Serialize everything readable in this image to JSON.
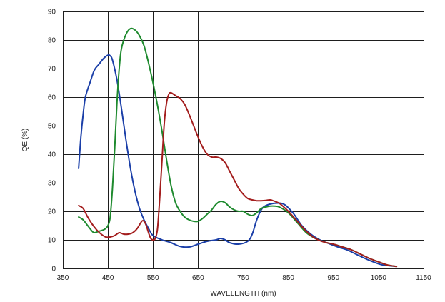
{
  "chart_data": {
    "type": "line",
    "title": "",
    "xlabel": "WAVELENGTH (nm)",
    "ylabel": "QE (%)",
    "xlim": [
      350,
      1150
    ],
    "ylim": [
      0,
      90
    ],
    "xticks": [
      350,
      450,
      550,
      650,
      750,
      850,
      950,
      1050,
      1150
    ],
    "yticks": [
      0,
      10,
      20,
      30,
      40,
      50,
      60,
      70,
      80,
      90
    ],
    "grid": true,
    "legend": "none",
    "series": [
      {
        "color": "#1b3fa8",
        "points": [
          [
            385,
            35
          ],
          [
            390,
            46
          ],
          [
            395,
            54
          ],
          [
            400,
            60
          ],
          [
            410,
            65
          ],
          [
            420,
            69.5
          ],
          [
            430,
            71.5
          ],
          [
            440,
            73.5
          ],
          [
            450,
            74.7
          ],
          [
            455,
            74.5
          ],
          [
            460,
            73
          ],
          [
            470,
            66
          ],
          [
            480,
            56
          ],
          [
            490,
            45
          ],
          [
            500,
            35
          ],
          [
            510,
            27
          ],
          [
            520,
            21
          ],
          [
            530,
            17
          ],
          [
            540,
            14
          ],
          [
            550,
            11.5
          ],
          [
            570,
            10
          ],
          [
            590,
            9
          ],
          [
            610,
            7.7
          ],
          [
            630,
            7.5
          ],
          [
            650,
            8.5
          ],
          [
            670,
            9.5
          ],
          [
            690,
            10
          ],
          [
            700,
            10.5
          ],
          [
            710,
            10
          ],
          [
            720,
            9
          ],
          [
            740,
            8.5
          ],
          [
            760,
            9.5
          ],
          [
            770,
            12
          ],
          [
            780,
            17
          ],
          [
            790,
            20.5
          ],
          [
            800,
            22
          ],
          [
            820,
            22.8
          ],
          [
            840,
            22.5
          ],
          [
            860,
            19.5
          ],
          [
            880,
            15
          ],
          [
            900,
            12
          ],
          [
            920,
            10
          ],
          [
            940,
            8.7
          ],
          [
            960,
            7.5
          ],
          [
            980,
            6.5
          ],
          [
            1000,
            5
          ],
          [
            1020,
            3.5
          ],
          [
            1040,
            2.2
          ],
          [
            1060,
            1.2
          ],
          [
            1090,
            0.7
          ]
        ]
      },
      {
        "color": "#1e8a2e",
        "points": [
          [
            385,
            18
          ],
          [
            395,
            17
          ],
          [
            405,
            15
          ],
          [
            415,
            13
          ],
          [
            420,
            12.5
          ],
          [
            430,
            13
          ],
          [
            440,
            13.5
          ],
          [
            445,
            14
          ],
          [
            450,
            15
          ],
          [
            455,
            18
          ],
          [
            460,
            28
          ],
          [
            465,
            42
          ],
          [
            470,
            58
          ],
          [
            475,
            70
          ],
          [
            480,
            77
          ],
          [
            490,
            82
          ],
          [
            500,
            84
          ],
          [
            510,
            83.5
          ],
          [
            520,
            81.5
          ],
          [
            530,
            78
          ],
          [
            540,
            72
          ],
          [
            550,
            65
          ],
          [
            560,
            57
          ],
          [
            570,
            48
          ],
          [
            580,
            38
          ],
          [
            590,
            29
          ],
          [
            600,
            23
          ],
          [
            610,
            20
          ],
          [
            620,
            18
          ],
          [
            630,
            17
          ],
          [
            640,
            16.5
          ],
          [
            650,
            16.5
          ],
          [
            660,
            17.5
          ],
          [
            670,
            19
          ],
          [
            680,
            20.5
          ],
          [
            690,
            22.5
          ],
          [
            700,
            23.5
          ],
          [
            710,
            23
          ],
          [
            720,
            21.5
          ],
          [
            730,
            20.5
          ],
          [
            740,
            20
          ],
          [
            750,
            20
          ],
          [
            760,
            19
          ],
          [
            770,
            18.5
          ],
          [
            780,
            19.5
          ],
          [
            790,
            21
          ],
          [
            800,
            21.5
          ],
          [
            810,
            21.8
          ],
          [
            820,
            21.8
          ],
          [
            830,
            21.5
          ],
          [
            850,
            19.5
          ],
          [
            870,
            16
          ],
          [
            890,
            12.5
          ],
          [
            910,
            10.5
          ],
          [
            930,
            9.2
          ],
          [
            950,
            8.5
          ],
          [
            970,
            7.5
          ],
          [
            990,
            6.5
          ],
          [
            1010,
            5
          ],
          [
            1030,
            3.5
          ],
          [
            1050,
            2.3
          ],
          [
            1070,
            1.2
          ],
          [
            1090,
            0.7
          ]
        ]
      },
      {
        "color": "#a31d1d",
        "points": [
          [
            385,
            22
          ],
          [
            395,
            21
          ],
          [
            405,
            18
          ],
          [
            415,
            15.5
          ],
          [
            425,
            13.5
          ],
          [
            435,
            12
          ],
          [
            445,
            11
          ],
          [
            455,
            11
          ],
          [
            465,
            11.5
          ],
          [
            475,
            12.5
          ],
          [
            485,
            12
          ],
          [
            495,
            12
          ],
          [
            505,
            12.5
          ],
          [
            515,
            14
          ],
          [
            525,
            16.5
          ],
          [
            530,
            16.5
          ],
          [
            535,
            15
          ],
          [
            540,
            12.5
          ],
          [
            545,
            10.5
          ],
          [
            550,
            10
          ],
          [
            555,
            10.5
          ],
          [
            560,
            14
          ],
          [
            565,
            25
          ],
          [
            570,
            38
          ],
          [
            575,
            51
          ],
          [
            580,
            58
          ],
          [
            585,
            61
          ],
          [
            590,
            61.5
          ],
          [
            600,
            60.5
          ],
          [
            610,
            59.5
          ],
          [
            620,
            57.5
          ],
          [
            630,
            54
          ],
          [
            640,
            50
          ],
          [
            650,
            46
          ],
          [
            660,
            42.5
          ],
          [
            670,
            40
          ],
          [
            680,
            39
          ],
          [
            690,
            39
          ],
          [
            700,
            38.5
          ],
          [
            710,
            37
          ],
          [
            720,
            34
          ],
          [
            730,
            31
          ],
          [
            740,
            28
          ],
          [
            750,
            26
          ],
          [
            760,
            24.5
          ],
          [
            770,
            24
          ],
          [
            780,
            23.7
          ],
          [
            790,
            23.7
          ],
          [
            800,
            23.8
          ],
          [
            810,
            24
          ],
          [
            820,
            23.5
          ],
          [
            830,
            22.8
          ],
          [
            840,
            21.5
          ],
          [
            850,
            20
          ],
          [
            870,
            16.5
          ],
          [
            890,
            13
          ],
          [
            910,
            10.5
          ],
          [
            930,
            9.2
          ],
          [
            950,
            8.5
          ],
          [
            970,
            7.5
          ],
          [
            990,
            6.5
          ],
          [
            1010,
            5
          ],
          [
            1030,
            3.5
          ],
          [
            1050,
            2.3
          ],
          [
            1070,
            1.2
          ],
          [
            1090,
            0.7
          ]
        ]
      }
    ]
  }
}
